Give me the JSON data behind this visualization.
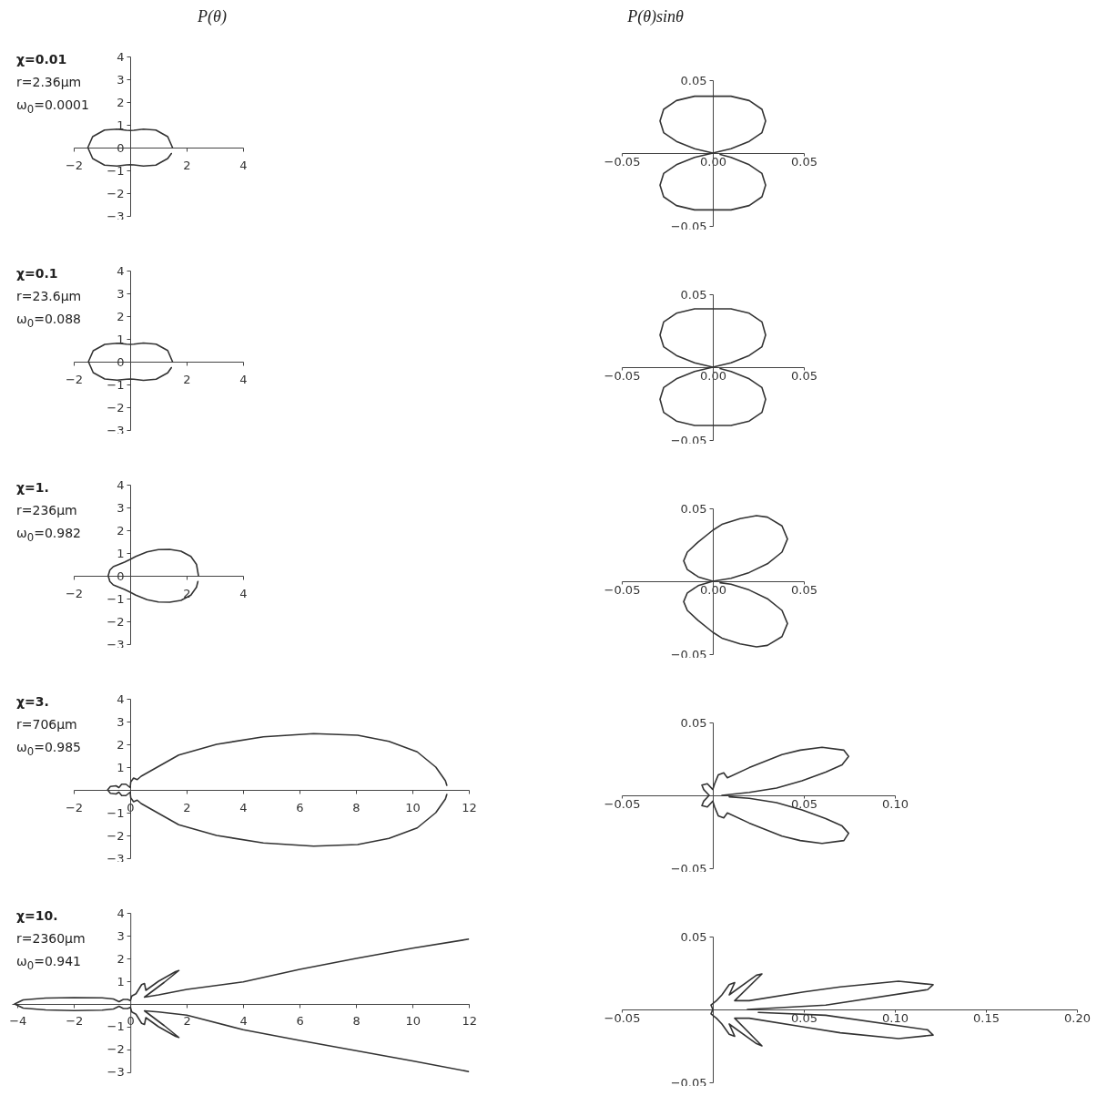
{
  "chart_data": [
    {
      "type": "line",
      "title": "P(θ)",
      "annotations": [
        "χ=0.01",
        "r=2.36μm",
        "ω$_{0}$=0.0001"
      ],
      "xlim": [
        -2,
        4
      ],
      "xticks": [
        -2,
        2,
        4
      ],
      "ylim": [
        -3,
        4
      ],
      "yticks": [
        -3,
        -2,
        -1,
        0,
        1,
        2,
        3,
        4
      ],
      "series": [
        {
          "color": "#333333",
          "x": [
            1.5,
            1.33,
            0.91,
            0.47,
            0.13,
            0,
            -0.13,
            -0.47,
            -0.91,
            -1.33,
            -1.5,
            -1.33,
            -0.91,
            -0.47,
            -0.13,
            0,
            0.13,
            0.47,
            0.91,
            1.33,
            1.46
          ],
          "values": [
            0,
            0.48,
            0.77,
            0.81,
            0.76,
            0.75,
            0.76,
            0.81,
            0.77,
            0.48,
            0,
            -0.48,
            -0.77,
            -0.81,
            -0.76,
            -0.75,
            -0.76,
            -0.81,
            -0.77,
            -0.48,
            -0.26
          ]
        }
      ]
    },
    {
      "type": "line",
      "title": "P(θ)sinθ",
      "xlim": [
        -0.05,
        0.05
      ],
      "xticks": [
        -0.05,
        {
          "value": 0,
          "label": "0.00"
        },
        0.05
      ],
      "ylim": [
        -0.05,
        0.05
      ],
      "yticks": [
        -0.05,
        0.05
      ],
      "series": [
        {
          "color": "#333333",
          "x": [
            0,
            0.01,
            0.02,
            0.027,
            0.029,
            0.027,
            0.02,
            0.01,
            0,
            -0.01,
            -0.02,
            -0.027,
            -0.029,
            -0.027,
            -0.02,
            -0.01,
            0,
            -0.01,
            -0.02,
            -0.027,
            -0.029,
            -0.027,
            -0.02,
            -0.01,
            0,
            0.01,
            0.02,
            0.027,
            0.029,
            0.027,
            0.02,
            0.01,
            0.004
          ],
          "values": [
            0,
            0.003,
            0.008,
            0.014,
            0.022,
            0.03,
            0.036,
            0.039,
            0.039,
            0.039,
            0.036,
            0.03,
            0.022,
            0.014,
            0.008,
            0.003,
            0,
            -0.003,
            -0.008,
            -0.014,
            -0.022,
            -0.03,
            -0.036,
            -0.039,
            -0.039,
            -0.039,
            -0.036,
            -0.03,
            -0.022,
            -0.014,
            -0.008,
            -0.003,
            -0.001
          ]
        }
      ]
    },
    {
      "type": "line",
      "annotations": [
        "χ=0.1",
        "r=23.6μm",
        "ω$_{0}$=0.088"
      ],
      "xlim": [
        -2,
        4
      ],
      "xticks": [
        -2,
        2,
        4
      ],
      "ylim": [
        -3,
        4
      ],
      "yticks": [
        -3,
        -2,
        -1,
        0,
        1,
        2,
        3,
        4
      ],
      "series": [
        {
          "color": "#333333",
          "x": [
            1.5,
            1.33,
            0.92,
            0.47,
            0.13,
            0,
            -0.13,
            -0.46,
            -0.9,
            -1.31,
            -1.48,
            -1.31,
            -0.9,
            -0.46,
            -0.13,
            0,
            0.13,
            0.47,
            0.92,
            1.33,
            1.46
          ],
          "values": [
            0,
            0.49,
            0.77,
            0.82,
            0.77,
            0.76,
            0.77,
            0.81,
            0.76,
            0.48,
            0,
            -0.48,
            -0.76,
            -0.81,
            -0.77,
            -0.76,
            -0.77,
            -0.82,
            -0.77,
            -0.49,
            -0.26
          ]
        }
      ]
    },
    {
      "type": "line",
      "xlim": [
        -0.05,
        0.05
      ],
      "xticks": [
        -0.05,
        {
          "value": 0,
          "label": "0.00"
        },
        0.05
      ],
      "ylim": [
        -0.05,
        0.05
      ],
      "yticks": [
        -0.05,
        0.05
      ],
      "series": [
        {
          "color": "#333333",
          "x": [
            0,
            0.01,
            0.02,
            0.027,
            0.029,
            0.027,
            0.02,
            0.01,
            0,
            -0.01,
            -0.02,
            -0.027,
            -0.029,
            -0.027,
            -0.02,
            -0.01,
            0,
            -0.01,
            -0.02,
            -0.027,
            -0.029,
            -0.027,
            -0.02,
            -0.01,
            0,
            0.01,
            0.02,
            0.027,
            0.029,
            0.027,
            0.02,
            0.01,
            0.004
          ],
          "values": [
            0,
            0.003,
            0.008,
            0.014,
            0.022,
            0.031,
            0.037,
            0.04,
            0.04,
            0.04,
            0.037,
            0.031,
            0.022,
            0.014,
            0.008,
            0.003,
            0,
            -0.003,
            -0.008,
            -0.014,
            -0.022,
            -0.031,
            -0.037,
            -0.04,
            -0.04,
            -0.04,
            -0.037,
            -0.031,
            -0.022,
            -0.014,
            -0.008,
            -0.003,
            -0.001
          ]
        }
      ]
    },
    {
      "type": "line",
      "annotations": [
        "χ=1.",
        "r=236μm",
        "ω$_{0}$=0.982"
      ],
      "xlim": [
        -2,
        4
      ],
      "xticks": [
        -2,
        2,
        4
      ],
      "ylim": [
        -3,
        4
      ],
      "yticks": [
        -3,
        -2,
        -1,
        0,
        1,
        2,
        3,
        4
      ],
      "series": [
        {
          "color": "#333333",
          "x": [
            2.42,
            2.35,
            2.15,
            1.8,
            1.4,
            1,
            0.6,
            0.2,
            0,
            -0.2,
            -0.4,
            -0.6,
            -0.72,
            -0.78,
            -0.72,
            -0.6,
            -0.4,
            -0.2,
            0,
            0.2,
            0.6,
            1,
            1.4,
            1.8,
            2.15,
            2.35,
            2.4
          ],
          "values": [
            0,
            0.5,
            0.85,
            1.08,
            1.16,
            1.15,
            1.05,
            0.85,
            0.72,
            0.6,
            0.5,
            0.4,
            0.25,
            0,
            -0.25,
            -0.4,
            -0.5,
            -0.6,
            -0.72,
            -0.85,
            -1.05,
            -1.15,
            -1.16,
            -1.08,
            -0.85,
            -0.5,
            -0.25
          ]
        }
      ]
    },
    {
      "type": "line",
      "xlim": [
        -0.05,
        0.05
      ],
      "xticks": [
        -0.05,
        {
          "value": 0,
          "label": "0.00"
        },
        0.05
      ],
      "ylim": [
        -0.05,
        0.05
      ],
      "yticks": [
        -0.05,
        0.05
      ],
      "series": [
        {
          "color": "#333333",
          "x": [
            0,
            0.01,
            0.02,
            0.03,
            0.038,
            0.041,
            0.038,
            0.03,
            0.024,
            0.015,
            0.005,
            0,
            -0.008,
            -0.014,
            -0.016,
            -0.014,
            -0.008,
            0,
            -0.008,
            -0.014,
            -0.016,
            -0.014,
            -0.008,
            0,
            0.005,
            0.015,
            0.024,
            0.03,
            0.038,
            0.041,
            0.038,
            0.03,
            0.02,
            0.01,
            0.004
          ],
          "values": [
            0,
            0.002,
            0.006,
            0.012,
            0.02,
            0.029,
            0.038,
            0.044,
            0.045,
            0.043,
            0.039,
            0.035,
            0.027,
            0.02,
            0.014,
            0.008,
            0.003,
            0,
            -0.003,
            -0.008,
            -0.014,
            -0.02,
            -0.027,
            -0.035,
            -0.039,
            -0.043,
            -0.045,
            -0.044,
            -0.038,
            -0.029,
            -0.02,
            -0.012,
            -0.006,
            -0.002,
            -0.001
          ]
        }
      ]
    },
    {
      "type": "line",
      "annotations": [
        "χ=3.",
        "r=706μm",
        "ω$_{0}$=0.985"
      ],
      "xlim": [
        -2,
        12
      ],
      "xticks": [
        -2,
        0,
        2,
        4,
        6,
        8,
        10,
        12
      ],
      "ylim": [
        -3,
        4
      ],
      "yticks": [
        -3,
        -2,
        -1,
        1,
        2,
        3,
        4
      ],
      "series": [
        {
          "color": "#333333",
          "x": [
            11.22,
            11.17,
            10.83,
            10.17,
            9.17,
            8.06,
            6.5,
            4.72,
            3.06,
            1.72,
            0.39,
            0.25,
            0.12,
            0.02,
            0,
            -0.15,
            -0.3,
            -0.4,
            -0.5,
            -0.7,
            -0.8,
            -0.7,
            -0.5,
            -0.4,
            -0.3,
            -0.15,
            0,
            0.02,
            0.12,
            0.25,
            0.39,
            1.72,
            3.06,
            4.72,
            6.5,
            8.06,
            9.17,
            10.17,
            10.83,
            11.17,
            11.22
          ],
          "values": [
            0.2,
            0.4,
            1,
            1.67,
            2.13,
            2.4,
            2.47,
            2.33,
            2,
            1.53,
            0.6,
            0.45,
            0.52,
            0.35,
            0.1,
            0.25,
            0.25,
            0.1,
            0.18,
            0.15,
            0,
            -0.15,
            -0.18,
            -0.1,
            -0.25,
            -0.25,
            -0.1,
            -0.35,
            -0.52,
            -0.45,
            -0.6,
            -1.53,
            -2,
            -2.33,
            -2.47,
            -2.4,
            -2.13,
            -1.67,
            -1,
            -0.4,
            -0.2
          ]
        }
      ]
    },
    {
      "type": "line",
      "xlim": [
        -0.05,
        0.1
      ],
      "xticks": [
        -0.05,
        0.05,
        {
          "value": 0.1,
          "label": "0.10"
        }
      ],
      "ylim": [
        -0.05,
        0.05
      ],
      "yticks": [
        -0.05,
        0.05
      ],
      "series": [
        {
          "color": "#333333",
          "x": [
            0.005,
            0.02,
            0.035,
            0.049,
            0.062,
            0.071,
            0.0746,
            0.072,
            0.06,
            0.048,
            0.038,
            0.02,
            0.008,
            0.006,
            0.003,
            0.001,
            0,
            -0.003,
            -0.006,
            -0.005,
            -0.002,
            -0.005,
            -0.006,
            -0.003,
            0,
            0.001,
            0.003,
            0.006,
            0.008,
            0.02,
            0.038,
            0.048,
            0.06,
            0.072,
            0.0746,
            0.071,
            0.062,
            0.049,
            0.035,
            0.02,
            0.009
          ],
          "values": [
            0,
            0.002,
            0.005,
            0.01,
            0.016,
            0.021,
            0.0267,
            0.031,
            0.033,
            0.031,
            0.028,
            0.019,
            0.012,
            0.0155,
            0.014,
            0.008,
            0.004,
            0.008,
            0.007,
            0.004,
            0,
            -0.004,
            -0.007,
            -0.008,
            -0.004,
            -0.008,
            -0.014,
            -0.0155,
            -0.012,
            -0.019,
            -0.028,
            -0.031,
            -0.033,
            -0.031,
            -0.026,
            -0.021,
            -0.016,
            -0.01,
            -0.005,
            -0.002,
            -0.001
          ]
        }
      ]
    },
    {
      "type": "line",
      "annotations": [
        "χ=10.",
        "r=2360μm",
        "ω$_{0}$=0.941"
      ],
      "xlim": [
        -4.2,
        12
      ],
      "xticks": [
        -4,
        -2,
        0,
        2,
        4,
        6,
        8,
        10,
        12
      ],
      "ylim": [
        -3,
        4
      ],
      "yticks": [
        -3,
        -2,
        -1,
        1,
        2,
        3,
        4
      ],
      "series": [
        {
          "color": "#333333",
          "x": [
            12,
            10,
            8,
            6,
            4,
            2,
            1,
            0.5,
            1.2,
            1.72,
            1.6,
            1,
            0.55,
            0.5,
            0.4,
            0.2,
            0.05,
            0,
            -0.1,
            -0.25,
            -0.4,
            -0.6,
            -1,
            -2,
            -3,
            -3.8,
            -4.1,
            -3.8,
            -3,
            -2,
            -1,
            -0.6,
            -0.4,
            -0.25,
            -0.1,
            0,
            0.05,
            0.2,
            0.4,
            0.5,
            0.55,
            1,
            1.6,
            1.72,
            1.2,
            0.5,
            1,
            2,
            4,
            6,
            8,
            10,
            12
          ],
          "values": [
            2.85,
            2.45,
            2,
            1.52,
            0.97,
            0.64,
            0.4,
            0.3,
            0.95,
            1.47,
            1.42,
            1,
            0.6,
            0.9,
            0.85,
            0.45,
            0.35,
            0.15,
            0.2,
            0.2,
            0.1,
            0.22,
            0.27,
            0.28,
            0.26,
            0.18,
            0,
            -0.18,
            -0.26,
            -0.29,
            -0.27,
            -0.22,
            -0.1,
            -0.2,
            -0.2,
            -0.15,
            -0.35,
            -0.45,
            -0.85,
            -0.9,
            -0.6,
            -1,
            -1.42,
            -1.47,
            -0.95,
            -0.3,
            -0.35,
            -0.49,
            -1.13,
            -1.6,
            -2.05,
            -2.5,
            -2.97
          ]
        }
      ]
    },
    {
      "type": "line",
      "xlim": [
        -0.05,
        0.2
      ],
      "xticks": [
        -0.05,
        0.05,
        {
          "value": 0.1,
          "label": "0.10"
        },
        0.15,
        {
          "value": 0.2,
          "label": "0.20"
        }
      ],
      "ylim": [
        -0.05,
        0.05
      ],
      "yticks": [
        -0.05,
        0.05
      ],
      "series": [
        {
          "color": "#333333",
          "x": [
            0.019,
            0.062,
            0.118,
            0.121,
            0.102,
            0.07,
            0.05,
            0.02,
            0.012,
            0.027,
            0.024,
            0.009,
            0.012,
            0.009,
            0.005,
            0.002,
            -0.001,
            0,
            -0.001,
            0.002,
            0.005,
            0.009,
            0.012,
            0.009,
            0.024,
            0.027,
            0.012,
            0.02,
            0.05,
            0.07,
            0.102,
            0.121,
            0.118,
            0.062,
            0.025
          ],
          "values": [
            0,
            0.003,
            0.0136,
            0.017,
            0.0194,
            0.0155,
            0.012,
            0.006,
            0.006,
            0.0244,
            0.0235,
            0.01,
            0.0184,
            0.017,
            0.01,
            0.006,
            0.003,
            0,
            -0.003,
            -0.006,
            -0.01,
            -0.017,
            -0.0184,
            -0.01,
            -0.0235,
            -0.025,
            -0.006,
            -0.006,
            -0.012,
            -0.016,
            -0.02,
            -0.0176,
            -0.014,
            -0.004,
            -0.002
          ]
        }
      ]
    }
  ]
}
